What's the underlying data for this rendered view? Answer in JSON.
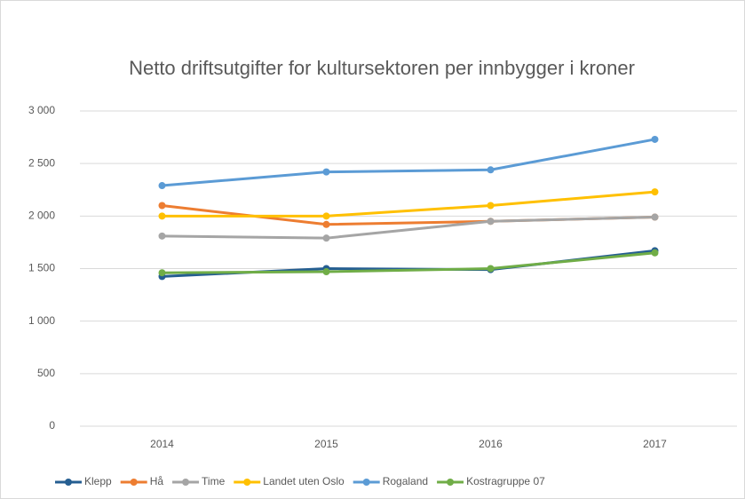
{
  "chart_data": {
    "type": "line",
    "title": "Netto driftsutgifter for kultursektoren per innbygger i kroner",
    "categories": [
      "2014",
      "2015",
      "2016",
      "2017"
    ],
    "series": [
      {
        "name": "Klepp",
        "color": "#255e91",
        "values": [
          1425,
          1500,
          1490,
          1670
        ]
      },
      {
        "name": "Hå",
        "color": "#ed7d31",
        "values": [
          2100,
          1920,
          1950,
          1990
        ]
      },
      {
        "name": "Time",
        "color": "#a5a5a5",
        "values": [
          1810,
          1790,
          1950,
          1990
        ]
      },
      {
        "name": "Landet uten Oslo",
        "color": "#ffc000",
        "values": [
          2000,
          2000,
          2100,
          2230
        ]
      },
      {
        "name": "Rogaland",
        "color": "#5b9bd5",
        "values": [
          2290,
          2420,
          2440,
          2730
        ]
      },
      {
        "name": "Kostragruppe 07",
        "color": "#70ad47",
        "values": [
          1460,
          1470,
          1500,
          1650
        ]
      }
    ],
    "ylim": [
      0,
      3000
    ],
    "yticks": [
      0,
      500,
      {
        "value": 1000,
        "label": "1 000"
      },
      {
        "value": 1500,
        "label": "1 500"
      },
      {
        "value": 2000,
        "label": "2 000"
      },
      {
        "value": 2500,
        "label": "2 500"
      },
      {
        "value": 3000,
        "label": "3 000"
      }
    ],
    "grid": true,
    "legend": "bottom"
  }
}
